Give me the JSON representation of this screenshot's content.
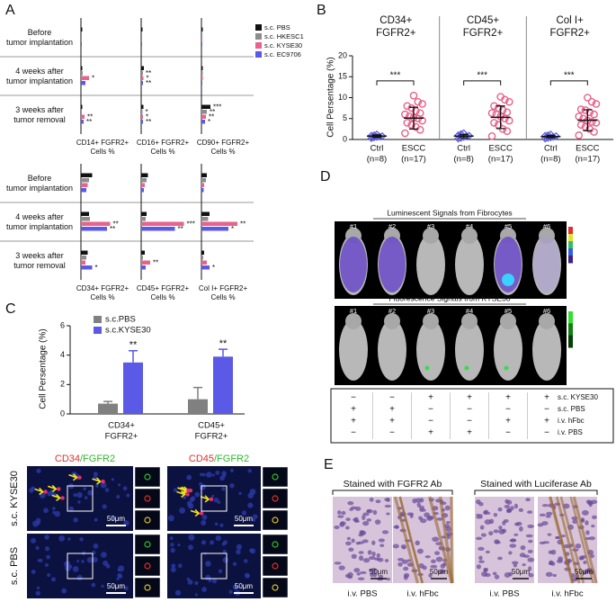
{
  "panel_a": {
    "label": "A",
    "legend": [
      {
        "name": "s.c. PBS",
        "color": "#111111"
      },
      {
        "name": "s.c. HKESC1",
        "color": "#8c8c8c"
      },
      {
        "name": "s.c. KYSE30",
        "color": "#e8628a"
      },
      {
        "name": "s.c. EC9706",
        "color": "#5a5ae6"
      }
    ],
    "row_labels": [
      [
        "Before",
        "tumor implantation"
      ],
      [
        "4 weeks after",
        "tumor implantation"
      ],
      [
        "3 weeks after",
        "tumor removal"
      ]
    ],
    "blocks": [
      {
        "columns": [
          {
            "label": [
              "CD14+ FGFR2+",
              "Cells %"
            ],
            "values": [
              [
                0.3,
                0.2,
                0.2,
                0.2
              ],
              [
                0.3,
                0.4,
                1.8,
                1.0
              ],
              [
                0.3,
                0.2,
                0.8,
                0.6
              ]
            ],
            "stars": [
              [
                null,
                null,
                null,
                null
              ],
              [
                null,
                null,
                "*",
                null
              ],
              [
                null,
                null,
                "**",
                "**"
              ]
            ]
          },
          {
            "label": [
              "CD16+ FGFR2+",
              "Cells %"
            ],
            "values": [
              [
                0.3,
                0.2,
                0.2,
                0.2
              ],
              [
                0.6,
                0.4,
                0.5,
                0.4
              ],
              [
                0.5,
                0.3,
                0.4,
                0.4
              ]
            ],
            "stars": [
              [
                null,
                null,
                null,
                null
              ],
              [
                null,
                "**",
                "*",
                "**"
              ],
              [
                null,
                "*",
                "*",
                "**"
              ]
            ]
          },
          {
            "label": [
              "CD90+ FGFR2+",
              "Cells %"
            ],
            "values": [
              [
                0.3,
                0.2,
                0.2,
                0.2
              ],
              [
                0.3,
                0.3,
                0.3,
                0.2
              ],
              [
                2.0,
                1.2,
                1.0,
                0.8
              ]
            ],
            "stars": [
              [
                null,
                null,
                null,
                null
              ],
              [
                null,
                null,
                null,
                null
              ],
              [
                "***",
                "**",
                "**",
                "*"
              ]
            ]
          }
        ]
      },
      {
        "columns": [
          {
            "label": [
              "CD34+ FGFR2+",
              "Cells %"
            ],
            "values": [
              [
                2.5,
                1.8,
                1.5,
                1.2
              ],
              [
                1.8,
                2.0,
                6.5,
                5.8
              ],
              [
                1.5,
                1.2,
                1.0,
                2.5
              ]
            ],
            "stars": [
              [
                null,
                null,
                null,
                null
              ],
              [
                null,
                null,
                "**",
                "**"
              ],
              [
                null,
                null,
                null,
                "*"
              ]
            ]
          },
          {
            "label": [
              "CD45+ FGFR2+",
              "Cells %"
            ],
            "values": [
              [
                1.5,
                1.2,
                0.8,
                0.6
              ],
              [
                1.2,
                1.0,
                9.5,
                7.5
              ],
              [
                0.8,
                0.4,
                2.0,
                1.0
              ]
            ],
            "stars": [
              [
                null,
                null,
                null,
                null
              ],
              [
                null,
                null,
                "***",
                "**"
              ],
              [
                null,
                null,
                "**",
                null
              ]
            ]
          },
          {
            "label": [
              "Col I+ FGFR2+",
              "Cells %"
            ],
            "values": [
              [
                1.2,
                1.0,
                0.6,
                0.5
              ],
              [
                1.8,
                1.5,
                8.0,
                6.0
              ],
              [
                0.6,
                0.4,
                1.2,
                1.8
              ]
            ],
            "stars": [
              [
                null,
                null,
                null,
                null
              ],
              [
                null,
                null,
                "**",
                "*"
              ],
              [
                null,
                null,
                null,
                "*"
              ]
            ]
          }
        ]
      }
    ]
  },
  "panel_b": {
    "label": "B",
    "y_label": "Cell Persentage (%)",
    "ylim": [
      0,
      20
    ],
    "yticks": [
      0,
      5,
      10,
      15,
      20
    ],
    "groups": [
      {
        "title": [
          "CD34+",
          "FGFR2+"
        ],
        "significance": "***",
        "ctrl": {
          "label": [
            "Ctrl",
            "(n=8)"
          ],
          "color": "#5a5ae6",
          "values": [
            0.3,
            0.5,
            0.6,
            0.7,
            0.8,
            0.9,
            1.0,
            1.2
          ],
          "mean": 0.8,
          "sd": 0.3
        },
        "escc": {
          "label": [
            "ESCC",
            "(n=17)"
          ],
          "color": "#e8628a",
          "values": [
            1.5,
            2.3,
            3.0,
            3.5,
            4.0,
            4.5,
            5.0,
            5.2,
            5.5,
            6.0,
            6.3,
            6.8,
            7.5,
            8.0,
            8.5,
            9.0,
            10.5
          ],
          "mean": 5.1,
          "sd": 2.6
        }
      },
      {
        "title": [
          "CD45+",
          "FGFR2+"
        ],
        "significance": "***",
        "ctrl": {
          "label": [
            "Ctrl",
            "(n=8)"
          ],
          "color": "#5a5ae6",
          "values": [
            0.2,
            0.4,
            0.6,
            0.8,
            0.9,
            1.0,
            1.3,
            1.5
          ],
          "mean": 0.8,
          "sd": 0.4
        },
        "escc": {
          "label": [
            "ESCC",
            "(n=17)"
          ],
          "color": "#e8628a",
          "values": [
            0.8,
            2.0,
            2.5,
            3.5,
            4.0,
            4.5,
            5.0,
            5.5,
            6.0,
            6.3,
            6.5,
            7.0,
            7.5,
            8.0,
            9.0,
            9.5,
            10.2
          ],
          "mean": 5.3,
          "sd": 2.7
        }
      },
      {
        "title": [
          "Col I+",
          "FGFR2+"
        ],
        "significance": "***",
        "ctrl": {
          "label": [
            "Ctrl",
            "(n=8)"
          ],
          "color": "#5a5ae6",
          "values": [
            0.2,
            0.4,
            0.5,
            0.6,
            0.8,
            0.9,
            1.0,
            1.2
          ],
          "mean": 0.7,
          "sd": 0.3
        },
        "escc": {
          "label": [
            "ESCC",
            "(n=17)"
          ],
          "color": "#e8628a",
          "values": [
            1.0,
            1.8,
            2.5,
            3.0,
            3.5,
            4.0,
            4.2,
            4.5,
            5.0,
            5.5,
            6.0,
            6.5,
            7.0,
            7.2,
            8.5,
            9.0,
            10.0
          ],
          "mean": 4.6,
          "sd": 2.5
        }
      }
    ]
  },
  "panel_c": {
    "label": "C",
    "y_label": "Cell Persentage (%)",
    "ylim": [
      0,
      6
    ],
    "yticks": [
      0,
      2,
      4,
      6
    ],
    "categories": [
      [
        "CD34+",
        "FGFR2+"
      ],
      [
        "CD45+",
        "FGFR2+"
      ]
    ],
    "series": [
      {
        "name": "s.c.PBS",
        "color": "#808080",
        "values": [
          0.7,
          1.0
        ],
        "errors": [
          0.15,
          0.8
        ]
      },
      {
        "name": "s.c.KYSE30",
        "color": "#5a5ae6",
        "values": [
          3.5,
          3.9
        ],
        "errors": [
          0.8,
          0.5
        ],
        "stars": [
          "**",
          "**"
        ]
      }
    ],
    "images": {
      "columns": [
        [
          {
            "text": "CD34",
            "color": "#e03030"
          },
          {
            "text": "/FGFR2",
            "color": "#2fb82f"
          }
        ],
        [
          {
            "text": "CD45",
            "color": "#e03030"
          },
          {
            "text": "/FGFR2",
            "color": "#2fb82f"
          }
        ]
      ],
      "rows": [
        "s.c. KYSE30",
        "s.c. PBS"
      ],
      "scale_bar": "50μm"
    }
  },
  "panel_d": {
    "label": "D",
    "sections": [
      {
        "title": "Luminescent Signals from Fibrocytes",
        "mice": [
          "#1",
          "#2",
          "#3",
          "#4",
          "#5",
          "#6"
        ]
      },
      {
        "title": "Fluorescence Signals from KYSE30",
        "mice": [
          "#1",
          "#2",
          "#3",
          "#4",
          "#5",
          "#6"
        ]
      }
    ],
    "table": [
      {
        "label": "s.c. KYSE30",
        "signs": [
          "−",
          "−",
          "+",
          "+",
          "+",
          "+"
        ]
      },
      {
        "label": "s.c. PBS",
        "signs": [
          "+",
          "+",
          "−",
          "−",
          "−",
          "−"
        ]
      },
      {
        "label": "i.v. hFbc",
        "signs": [
          "+",
          "+",
          "−",
          "−",
          "+",
          "+"
        ]
      },
      {
        "label": "i.v. PBS",
        "signs": [
          "−",
          "−",
          "+",
          "+",
          "−",
          "−"
        ]
      }
    ]
  },
  "panel_e": {
    "label": "E",
    "scale_bar": "50μm",
    "groups": [
      {
        "title": "Stained with FGFR2 Ab",
        "images": [
          "i.v. PBS",
          "i.v. hFbc"
        ]
      },
      {
        "title": "Stained with Luciferase Ab",
        "images": [
          "i.v. PBS",
          "i.v. hFbc"
        ]
      }
    ]
  }
}
